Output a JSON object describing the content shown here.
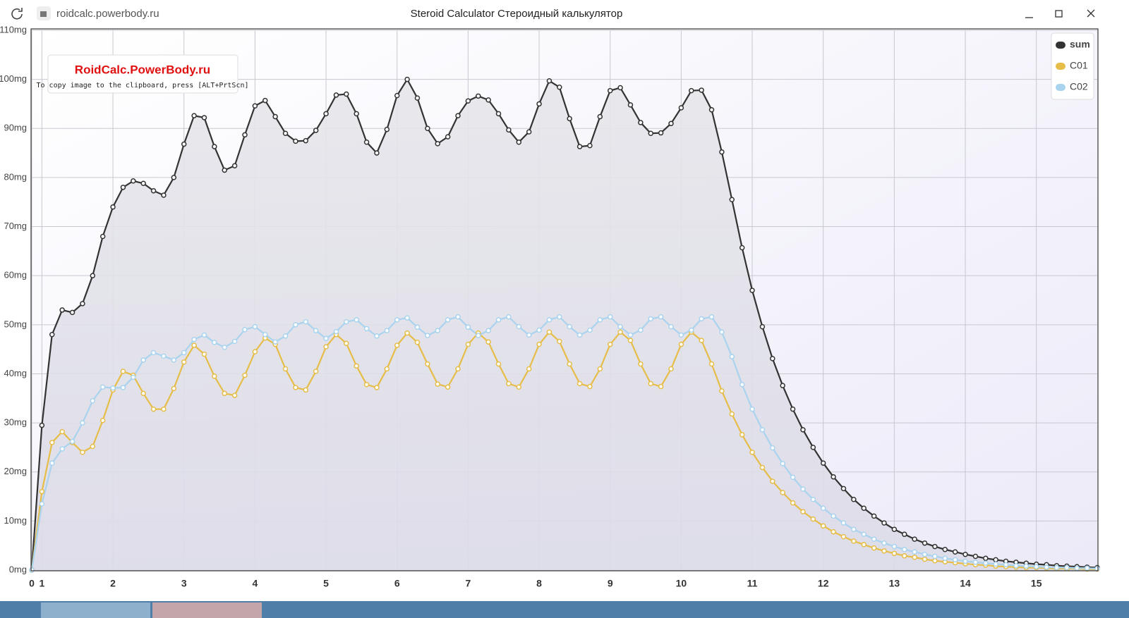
{
  "browser": {
    "url": "roidcalc.powerbody.ru",
    "window_title": "Steroid Calculator Стероидный калькулятор"
  },
  "watermark": {
    "title": "RoidCalc.PowerBody.ru",
    "note": "To copy image to the clipboard, press [ALT+PrtScn]"
  },
  "chart_data": {
    "type": "line",
    "legend": "top-right",
    "grid": true,
    "area_series": "sum",
    "x": [
      0,
      1,
      2,
      3,
      4,
      5,
      6,
      7,
      8,
      9,
      10,
      11,
      12,
      13,
      14,
      15,
      16,
      17,
      18,
      19,
      20,
      21,
      22,
      23,
      24,
      25,
      26,
      27,
      28,
      29,
      30,
      31,
      32,
      33,
      34,
      35,
      36,
      37,
      38,
      39,
      40,
      41,
      42,
      43,
      44,
      45,
      46,
      47,
      48,
      49,
      50,
      51,
      52,
      53,
      54,
      55,
      56,
      57,
      58,
      59,
      60,
      61,
      62,
      63,
      64,
      65,
      66,
      67,
      68,
      69,
      70,
      71,
      72,
      73,
      74,
      75,
      76,
      77,
      78,
      79,
      80,
      81,
      82,
      83,
      84,
      85,
      86,
      87,
      88,
      89,
      90,
      91,
      92,
      93,
      94,
      95,
      96,
      97,
      98,
      99,
      100,
      101,
      102,
      103,
      104,
      105
    ],
    "xlim": [
      0,
      105
    ],
    "xticks": [
      0,
      1,
      {
        "value": 8,
        "label": "2"
      },
      {
        "value": 15,
        "label": "3"
      },
      {
        "value": 22,
        "label": "4"
      },
      {
        "value": 29,
        "label": "5"
      },
      {
        "value": 36,
        "label": "6"
      },
      {
        "value": 43,
        "label": "7"
      },
      {
        "value": 50,
        "label": "8"
      },
      {
        "value": 57,
        "label": "9"
      },
      {
        "value": 64,
        "label": "10"
      },
      {
        "value": 71,
        "label": "11"
      },
      {
        "value": 78,
        "label": "12"
      },
      {
        "value": 85,
        "label": "13"
      },
      {
        "value": 92,
        "label": "14"
      },
      {
        "value": 99,
        "label": "15"
      }
    ],
    "ylim": [
      0,
      110
    ],
    "yticks": [
      {
        "value": 0,
        "label": "0mg"
      },
      {
        "value": 10,
        "label": "10mg"
      },
      {
        "value": 20,
        "label": "20mg"
      },
      {
        "value": 30,
        "label": "30mg"
      },
      {
        "value": 40,
        "label": "40mg"
      },
      {
        "value": 50,
        "label": "50mg"
      },
      {
        "value": 60,
        "label": "60mg"
      },
      {
        "value": 70,
        "label": "70mg"
      },
      {
        "value": 80,
        "label": "80mg"
      },
      {
        "value": 90,
        "label": "90mg"
      },
      {
        "value": 100,
        "label": "100mg"
      },
      {
        "value": 110,
        "label": "110mg"
      }
    ],
    "series": [
      {
        "name": "sum",
        "color": "#333333",
        "values": [
          0,
          29.5,
          48,
          53,
          52.5,
          54.3,
          60,
          68,
          74,
          78,
          79.3,
          78.8,
          77.3,
          76.4,
          80,
          86.8,
          92.6,
          92.2,
          86.3,
          81.5,
          82.4,
          88.7,
          94.6,
          95.7,
          92.4,
          89,
          87.4,
          87.5,
          89.6,
          93,
          96.8,
          97,
          93,
          87.2,
          85,
          89.8,
          96.7,
          100,
          96.2,
          90,
          86.9,
          88.3,
          92.6,
          95.6,
          96.6,
          95.8,
          93,
          89.7,
          87.2,
          89.3,
          95,
          99.7,
          98.4,
          92,
          86.3,
          86.5,
          92.4,
          97.7,
          98.3,
          94.8,
          91.2,
          89,
          89.1,
          91,
          94.2,
          97.7,
          97.8,
          93.8,
          85.2,
          75.5,
          65.7,
          57,
          49.6,
          43.1,
          37.6,
          32.8,
          28.6,
          25,
          21.8,
          19,
          16.6,
          14.4,
          12.6,
          11,
          9.6,
          8.3,
          7.3,
          6.3,
          5.5,
          4.8,
          4.2,
          3.7,
          3.2,
          2.8,
          2.4,
          2.1,
          1.8,
          1.6,
          1.4,
          1.2,
          1.1,
          0.9,
          0.8,
          0.7,
          0.6,
          0.5
        ]
      },
      {
        "name": "C01",
        "color": "#e6bd48",
        "values": [
          0,
          16,
          26,
          28.2,
          26,
          24,
          25.2,
          30.5,
          36.7,
          40.5,
          39.7,
          36,
          32.8,
          32.8,
          37,
          42.4,
          45.8,
          44,
          39.5,
          36,
          35.6,
          39.7,
          44.5,
          47.3,
          46,
          41,
          37.2,
          36.7,
          40.5,
          45.5,
          48,
          46.2,
          41.6,
          37.8,
          37.2,
          41,
          45.8,
          48.3,
          46.4,
          42,
          37.9,
          37.3,
          41,
          46,
          48.3,
          46.5,
          42,
          38,
          37.3,
          41,
          46,
          48.5,
          46.6,
          42,
          38,
          37.4,
          41,
          46,
          48.5,
          46.8,
          42,
          38,
          37.4,
          41,
          46,
          48.5,
          46.8,
          42,
          36.5,
          31.8,
          27.6,
          24,
          20.9,
          18.1,
          15.8,
          13.7,
          11.9,
          10.4,
          9,
          7.8,
          6.8,
          5.9,
          5.2,
          4.5,
          3.9,
          3.4,
          2.9,
          2.6,
          2.2,
          1.9,
          1.7,
          1.5,
          1.3,
          1.1,
          1,
          0.8,
          0.7,
          0.6,
          0.5,
          0.5,
          0.4,
          0.3,
          0.3,
          0.3,
          0.2,
          0.2
        ]
      },
      {
        "name": "C02",
        "color": "#a9d3ee",
        "values": [
          0,
          13.5,
          21.8,
          24.7,
          26.2,
          30,
          34.5,
          37.3,
          37.1,
          37.2,
          39.3,
          42.8,
          44.3,
          43.6,
          42.8,
          44.3,
          47,
          47.9,
          46.4,
          45.4,
          46.6,
          49,
          49.6,
          48,
          46.5,
          47.7,
          50,
          50.6,
          48.8,
          47.2,
          48.6,
          50.6,
          51,
          49.2,
          47.7,
          48.8,
          51,
          51.4,
          49.5,
          47.8,
          48.8,
          51,
          51.6,
          49.5,
          47.8,
          48.8,
          51,
          51.6,
          49.6,
          47.9,
          48.9,
          51,
          51.6,
          49.6,
          47.9,
          48.9,
          51,
          51.6,
          49.6,
          47.9,
          48.9,
          51.2,
          51.6,
          49.6,
          47.9,
          48.9,
          51.2,
          51.6,
          48.5,
          43.5,
          37.8,
          32.8,
          28.6,
          24.9,
          21.7,
          18.9,
          16.5,
          14.4,
          12.6,
          11,
          9.6,
          8.3,
          7.3,
          6.3,
          5.5,
          4.8,
          4.2,
          3.7,
          3.2,
          2.8,
          2.4,
          2.1,
          1.8,
          1.6,
          1.4,
          1.2,
          1.1,
          0.9,
          0.8,
          0.7,
          0.6,
          0.5,
          0.5,
          0.4,
          0.4,
          0.3
        ]
      }
    ]
  }
}
